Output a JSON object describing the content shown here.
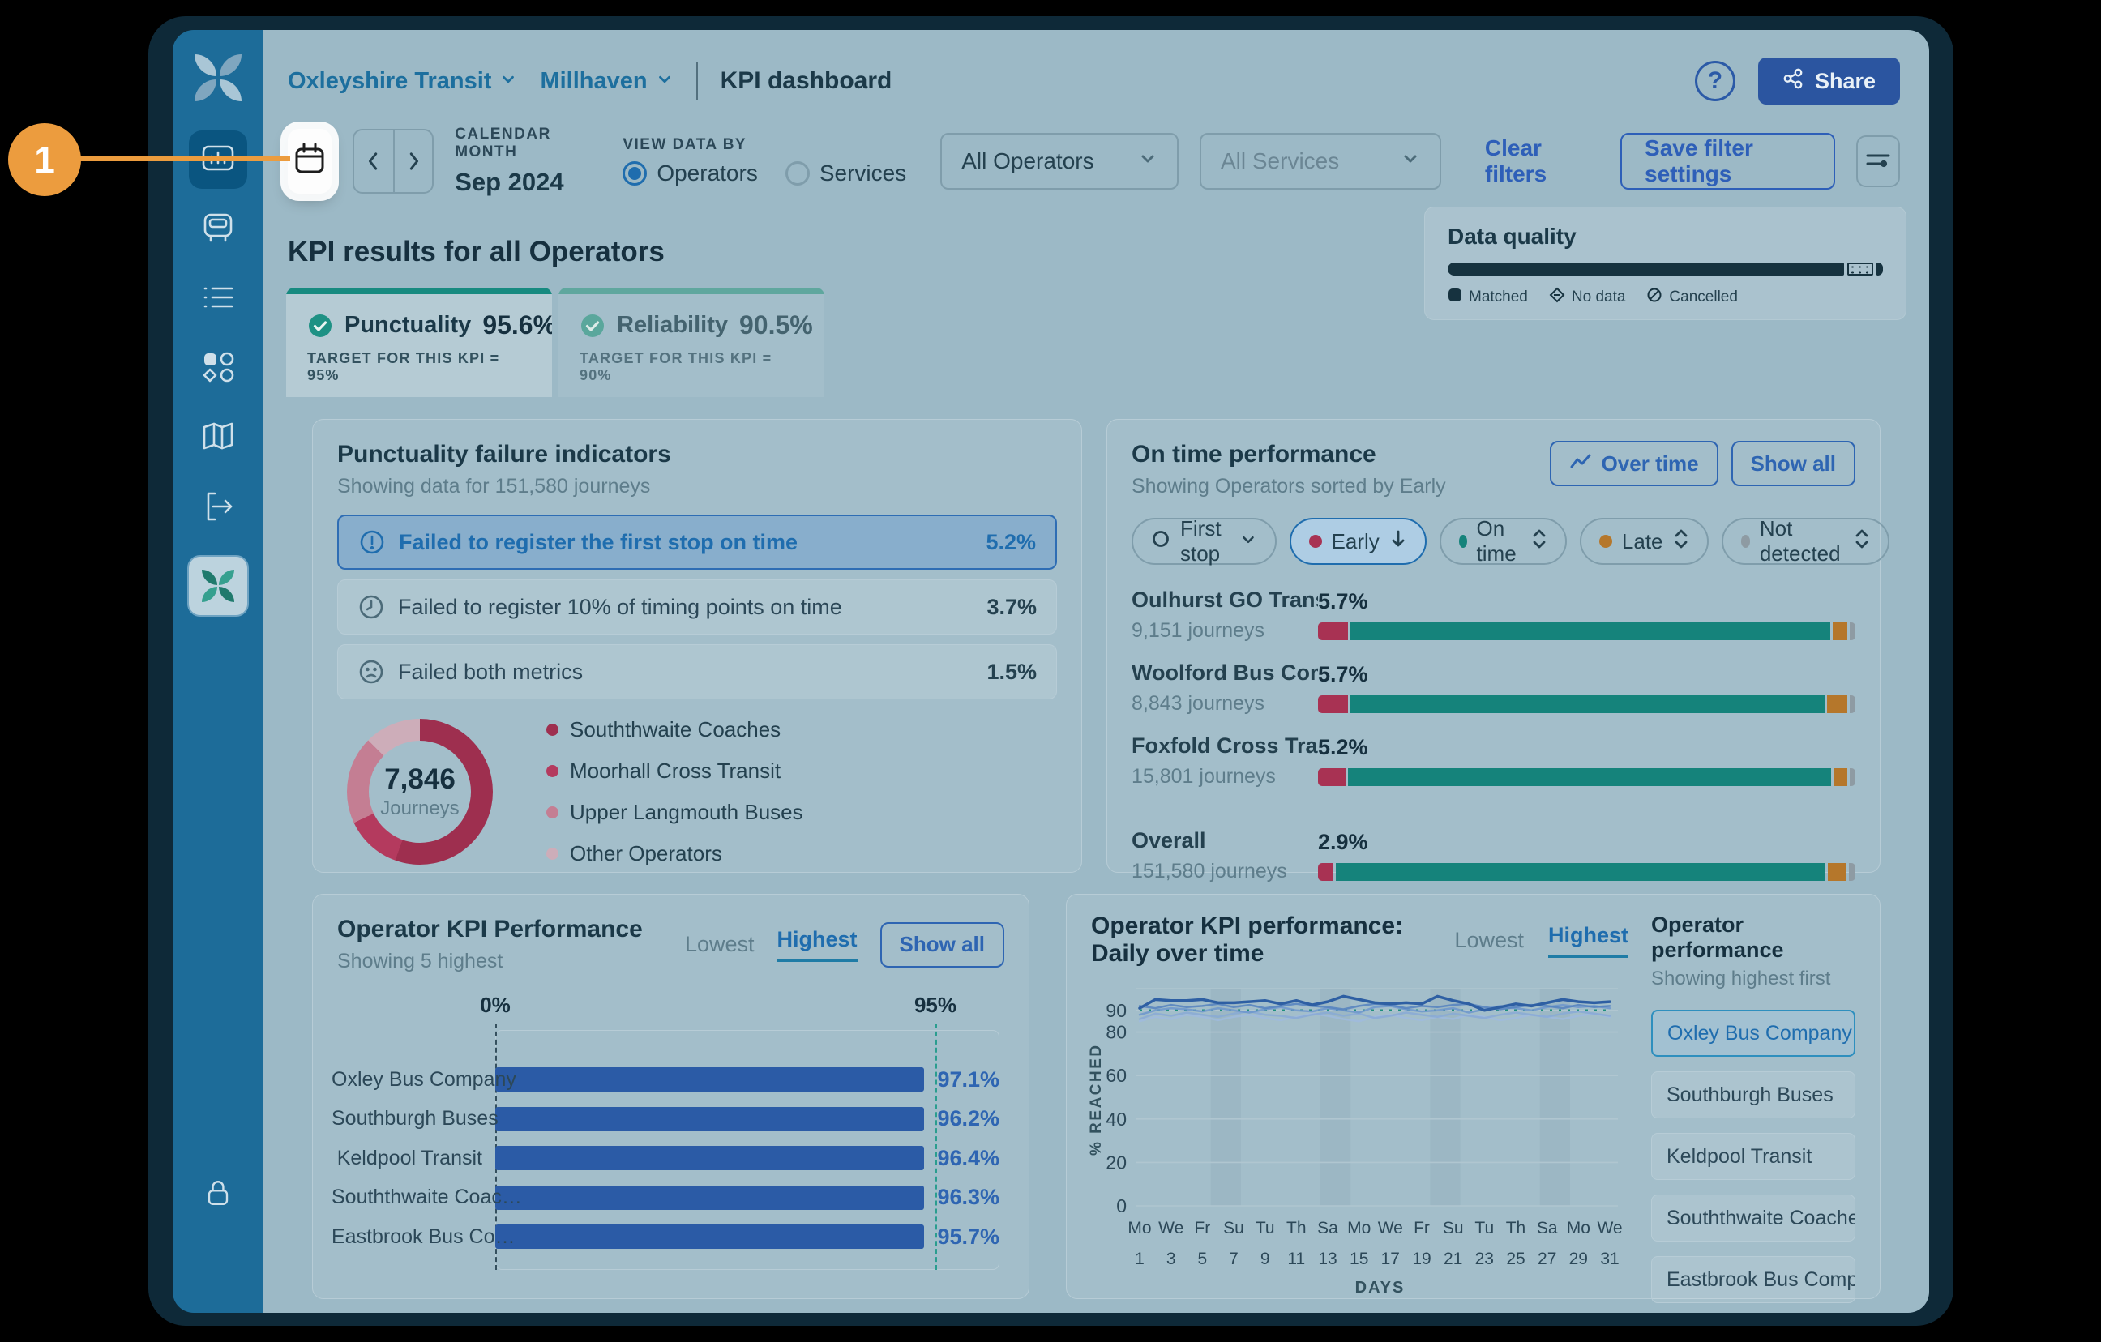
{
  "annotation": {
    "step_number": "1"
  },
  "header": {
    "org": "Oxleyshire Transit",
    "region": "Millhaven",
    "title": "KPI dashboard",
    "help_glyph": "?",
    "share": "Share"
  },
  "filters": {
    "calendar_month_label": "CALENDAR MONTH",
    "calendar_month_value": "Sep 2024",
    "view_data_by_label": "VIEW DATA BY",
    "radio_operators": "Operators",
    "radio_services": "Services",
    "selected_view": "Operators",
    "operators_select": "All Operators",
    "services_select": "All Services",
    "clear_filters": "Clear filters",
    "save_filter_settings": "Save filter settings"
  },
  "kpi": {
    "heading": "KPI results for all Operators",
    "tabs": [
      {
        "label": "Punctuality",
        "value": "95.6%",
        "target": "TARGET FOR THIS KPI = 95%",
        "active": true
      },
      {
        "label": "Reliability",
        "value": "90.5%",
        "target": "TARGET FOR THIS KPI = 90%",
        "active": false
      }
    ]
  },
  "data_quality": {
    "title": "Data quality",
    "legend": [
      {
        "label": "Matched"
      },
      {
        "label": "No data"
      },
      {
        "label": "Cancelled"
      }
    ]
  },
  "punctuality_card": {
    "title": "Punctuality failure indicators",
    "subtitle": "Showing data for 151,580 journeys",
    "indicators": [
      {
        "label": "Failed to register the first stop on time",
        "value": "5.2%",
        "selected": true
      },
      {
        "label": "Failed to register 10% of timing points on time",
        "value": "3.7%",
        "selected": false
      },
      {
        "label": "Failed both metrics",
        "value": "1.5%",
        "selected": false
      }
    ],
    "donut": {
      "center_value": "7,846",
      "center_label": "Journeys",
      "legend": [
        "Souththwaite Coaches",
        "Moorhall Cross Transit",
        "Upper Langmouth Buses",
        "Other Operators"
      ]
    }
  },
  "on_time_card": {
    "title": "On time performance",
    "subtitle": "Showing Operators sorted by Early",
    "over_time": "Over time",
    "show_all": "Show all",
    "chips": [
      {
        "label": "First stop"
      },
      {
        "label": "Early",
        "selected": true
      },
      {
        "label": "On time"
      },
      {
        "label": "Late"
      },
      {
        "label": "Not detected"
      }
    ],
    "rows": [
      {
        "name": "Oulhurst GO Transit",
        "journeys": "9,151 journeys",
        "pct": "5.7%"
      },
      {
        "name": "Woolford Bus Comp…",
        "journeys": "8,843 journeys",
        "pct": "5.7%"
      },
      {
        "name": "Foxfold Cross Travel",
        "journeys": "15,801 journeys",
        "pct": "5.2%"
      }
    ],
    "overall": {
      "name": "Overall",
      "journeys": "151,580 journeys",
      "pct": "2.9%"
    }
  },
  "operator_kpi_card": {
    "title": "Operator KPI Performance",
    "subtitle": "Showing 5 highest",
    "lowest": "Lowest",
    "highest": "Highest",
    "show_all": "Show all",
    "axis_left": "0%",
    "axis_right": "95%",
    "bars": [
      {
        "name": "Oxley Bus Company",
        "value": "97.1%"
      },
      {
        "name": "Southburgh Buses",
        "value": "96.2%"
      },
      {
        "name": "Keldpool Transit",
        "value": "96.4%"
      },
      {
        "name": "Souththwaite Coac…",
        "value": "96.3%"
      },
      {
        "name": "Eastbrook Bus Co…",
        "value": "95.7%"
      }
    ]
  },
  "daily_card": {
    "title": "Operator KPI performance: Daily over time",
    "lowest": "Lowest",
    "highest": "Highest",
    "panel_title": "Operator performance",
    "panel_subtitle": "Showing highest first",
    "ylabel": "% REACHED",
    "xlabel": "DAYS",
    "operators": [
      {
        "name": "Oxley Bus Company",
        "selected": true
      },
      {
        "name": "Southburgh Buses",
        "selected": false
      },
      {
        "name": "Keldpool Transit",
        "selected": false
      },
      {
        "name": "Souththwaite Coaches",
        "selected": false
      },
      {
        "name": "Eastbrook Bus Compa…",
        "selected": false
      }
    ]
  },
  "colors": {
    "early": "#a83253",
    "on_time": "#15837b",
    "late": "#b5772b",
    "not_detected": "#8e9ba3",
    "accent_blue": "#2e65b2",
    "teal": "#178a80",
    "bar_blue": "#2b5ba6",
    "annotation_orange": "#ec9c3e",
    "sidebar_blue": "#1d6c99",
    "content_bg": "#9cb9c6"
  },
  "chart_data": [
    {
      "id": "data_quality",
      "type": "bar",
      "title": "Data quality",
      "categories": [
        "Matched",
        "No data",
        "Cancelled"
      ],
      "values": [
        92.5,
        6,
        1.5
      ],
      "unit": "%"
    },
    {
      "id": "failure_donut",
      "type": "pie",
      "title": "Failed to register the first stop on time — journeys by operator",
      "center_value": 7846,
      "center_label": "Journeys",
      "labels": [
        "Souththwaite Coaches",
        "Moorhall Cross Transit",
        "Upper Langmouth Buses",
        "Other Operators"
      ],
      "values_pct": [
        55.5,
        12.5,
        19.5,
        12.5
      ],
      "colors": [
        "#9e2f4f",
        "#b43a5e",
        "#c47e93",
        "#cdadb9"
      ]
    },
    {
      "id": "on_time",
      "type": "bar",
      "stacked": true,
      "title": "On time performance",
      "categories": [
        "Oulhurst GO Transit",
        "Woolford Bus Comp…",
        "Foxfold Cross Travel",
        "Overall"
      ],
      "series": [
        {
          "name": "Early",
          "color": "#a83253",
          "values": [
            5.7,
            5.7,
            5.2,
            2.9
          ]
        },
        {
          "name": "On time",
          "color": "#15837b",
          "values": [
            90.5,
            89.4,
            91.1,
            92.3
          ]
        },
        {
          "name": "Late",
          "color": "#b5772b",
          "values": [
            2.7,
            3.8,
            2.6,
            3.6
          ]
        },
        {
          "name": "Not detected",
          "color": "#8e9ba3",
          "values": [
            1.1,
            1.1,
            1.1,
            1.2
          ]
        }
      ]
    },
    {
      "id": "operator_kpi",
      "type": "bar",
      "title": "Operator KPI Performance (5 highest)",
      "categories": [
        "Oxley Bus Company",
        "Southburgh Buses",
        "Keldpool Transit",
        "Souththwaite Coac…",
        "Eastbrook Bus Co…"
      ],
      "values": [
        97.1,
        96.2,
        96.4,
        96.3,
        95.7
      ],
      "axis_marks": [
        0,
        95
      ],
      "unit": "%"
    },
    {
      "id": "daily",
      "type": "line",
      "title": "Operator KPI performance: Daily over time",
      "ylabel": "% REACHED",
      "xlabel": "DAYS",
      "ylim": [
        0,
        100
      ],
      "target": 90,
      "yticks": [
        90,
        80,
        60,
        40,
        20,
        0
      ],
      "weekend_bands": [
        [
          6,
          7
        ],
        [
          13,
          14
        ],
        [
          20,
          21
        ],
        [
          27,
          28
        ]
      ],
      "xticks": [
        {
          "dow": "Mo",
          "day": "1"
        },
        {
          "dow": "We",
          "day": "3"
        },
        {
          "dow": "Fr",
          "day": "5"
        },
        {
          "dow": "Su",
          "day": "7"
        },
        {
          "dow": "Tu",
          "day": "9"
        },
        {
          "dow": "Th",
          "day": "11"
        },
        {
          "dow": "Sa",
          "day": "13"
        },
        {
          "dow": "Mo",
          "day": "15"
        },
        {
          "dow": "We",
          "day": "17"
        },
        {
          "dow": "Fr",
          "day": "19"
        },
        {
          "dow": "Su",
          "day": "21"
        },
        {
          "dow": "Tu",
          "day": "23"
        },
        {
          "dow": "Th",
          "day": "25"
        },
        {
          "dow": "Sa",
          "day": "27"
        },
        {
          "dow": "Mo",
          "day": "29"
        },
        {
          "dow": "We",
          "day": "31"
        }
      ],
      "series": [
        {
          "name": "Oxley Bus Company",
          "color": "#2e5fa3",
          "width": 3.5,
          "opacity": 1,
          "values": [
            91,
            95,
            94.5,
            94.5,
            95,
            93.5,
            93.5,
            94,
            94.5,
            93,
            94.5,
            92.5,
            94,
            96.5,
            95,
            93.5,
            93,
            93.5,
            93,
            96.5,
            94.5,
            93,
            90,
            91.5,
            93,
            92,
            93.5,
            95,
            94,
            93.5,
            94
          ]
        },
        {
          "name": "Southburgh Buses",
          "color": "#5583bf",
          "width": 2.5,
          "opacity": 0.85,
          "values": [
            92,
            91,
            92.5,
            91.5,
            92,
            93,
            91.5,
            92.5,
            91,
            92,
            93,
            92,
            91.5,
            90.5,
            92,
            93,
            92.5,
            91,
            92,
            91.5,
            92.5,
            93,
            91.5,
            90.5,
            91.5,
            92.5,
            92,
            91,
            92.5,
            91.5,
            92
          ]
        },
        {
          "name": "Keldpool Transit",
          "color": "#6d97cd",
          "width": 2.5,
          "opacity": 0.85,
          "values": [
            88,
            90,
            91,
            90.5,
            89.5,
            91,
            90,
            89,
            90.5,
            91.5,
            90,
            89.5,
            91,
            90,
            89,
            91.5,
            92,
            90.5,
            89.5,
            90,
            91,
            89,
            90.5,
            92,
            91,
            90,
            91.5,
            92.5,
            91.5,
            92,
            91
          ]
        },
        {
          "name": "Souththwaite Coaches",
          "color": "#87a9d6",
          "width": 2.5,
          "opacity": 0.8,
          "values": [
            86,
            88.5,
            87.5,
            89,
            88,
            87,
            88.5,
            89.5,
            88,
            87.5,
            86.5,
            88,
            89,
            87.5,
            88.5,
            86.5,
            87.5,
            89,
            88,
            87,
            88.5,
            87.5,
            86.5,
            88,
            89,
            88,
            87,
            88.5,
            89.5,
            88.5,
            87.5
          ]
        },
        {
          "name": "Eastbrook Bus Compa…",
          "color": "#9fbade",
          "width": 2.5,
          "opacity": 0.8,
          "values": [
            85,
            87,
            86,
            88,
            87,
            85.5,
            87,
            88,
            86.5,
            85.5,
            87,
            88.5,
            87.5,
            86,
            85,
            87,
            88,
            86.5,
            85.5,
            87,
            86,
            88,
            87,
            85.5,
            86.5,
            88,
            87,
            86,
            87.5,
            88.5,
            87
          ]
        }
      ]
    }
  ]
}
